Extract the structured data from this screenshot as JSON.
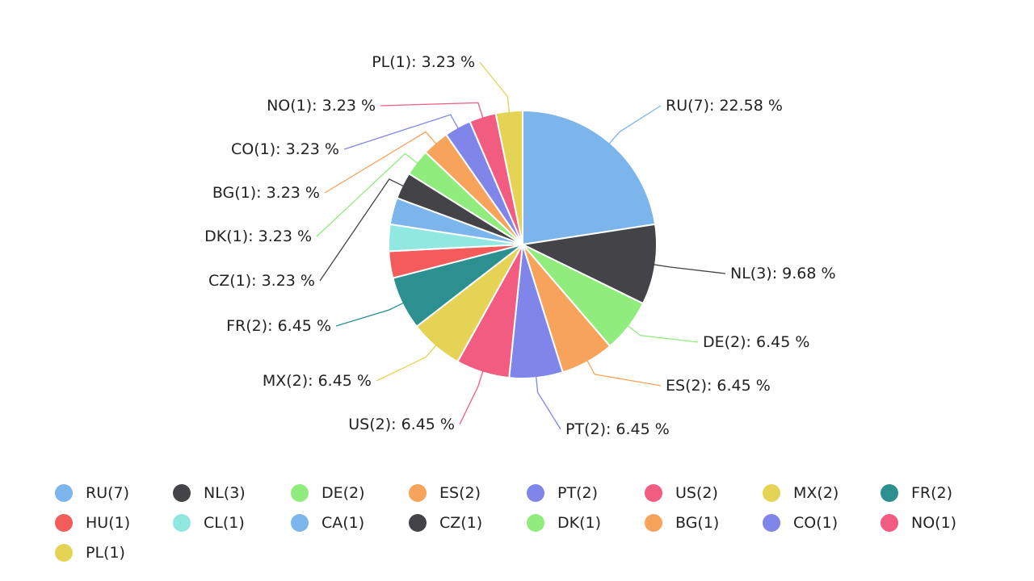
{
  "chart_data": {
    "type": "pie",
    "title": "",
    "legend_position": "bottom",
    "slices": [
      {
        "label": "RU(7)",
        "count": 7,
        "percent": 22.58,
        "callout": "RU(7): 22.58 %",
        "color": "#7cb5ec"
      },
      {
        "label": "NL(3)",
        "count": 3,
        "percent": 9.68,
        "callout": "NL(3): 9.68 %",
        "color": "#434348"
      },
      {
        "label": "DE(2)",
        "count": 2,
        "percent": 6.45,
        "callout": "DE(2): 6.45 %",
        "color": "#90ed7d"
      },
      {
        "label": "ES(2)",
        "count": 2,
        "percent": 6.45,
        "callout": "ES(2): 6.45 %",
        "color": "#f7a35c"
      },
      {
        "label": "PT(2)",
        "count": 2,
        "percent": 6.45,
        "callout": "PT(2): 6.45 %",
        "color": "#8085e9"
      },
      {
        "label": "US(2)",
        "count": 2,
        "percent": 6.45,
        "callout": "US(2): 6.45 %",
        "color": "#f15c80"
      },
      {
        "label": "MX(2)",
        "count": 2,
        "percent": 6.45,
        "callout": "MX(2): 6.45 %",
        "color": "#e4d354"
      },
      {
        "label": "FR(2)",
        "count": 2,
        "percent": 6.45,
        "callout": "FR(2): 6.45 %",
        "color": "#2b908f"
      },
      {
        "label": "HU(1)",
        "count": 1,
        "percent": 3.23,
        "callout": "",
        "color": "#f45b5b"
      },
      {
        "label": "CL(1)",
        "count": 1,
        "percent": 3.23,
        "callout": "",
        "color": "#91e8e1"
      },
      {
        "label": "CA(1)",
        "count": 1,
        "percent": 3.23,
        "callout": "",
        "color": "#7cb5ec"
      },
      {
        "label": "CZ(1)",
        "count": 1,
        "percent": 3.23,
        "callout": "CZ(1): 3.23 %",
        "color": "#434348"
      },
      {
        "label": "DK(1)",
        "count": 1,
        "percent": 3.23,
        "callout": "DK(1): 3.23 %",
        "color": "#90ed7d"
      },
      {
        "label": "BG(1)",
        "count": 1,
        "percent": 3.23,
        "callout": "BG(1): 3.23 %",
        "color": "#f7a35c"
      },
      {
        "label": "CO(1)",
        "count": 1,
        "percent": 3.23,
        "callout": "CO(1): 3.23 %",
        "color": "#8085e9"
      },
      {
        "label": "NO(1)",
        "count": 1,
        "percent": 3.23,
        "callout": "NO(1): 3.23 %",
        "color": "#f15c80"
      },
      {
        "label": "PL(1)",
        "count": 1,
        "percent": 3.23,
        "callout": "PL(1): 3.23 %",
        "color": "#e4d354"
      }
    ]
  }
}
